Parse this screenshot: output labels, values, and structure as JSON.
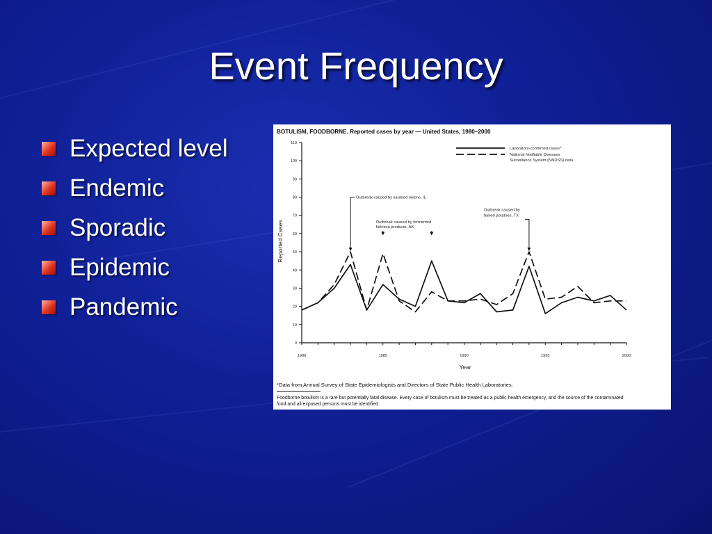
{
  "slide": {
    "title": "Event Frequency",
    "bullets": [
      "Expected level",
      "Endemic",
      "Sporadic",
      "Epidemic",
      "Pandemic"
    ],
    "colors": {
      "background": "#0f1f95",
      "bullet": "#e0341f",
      "text": "#ffffff"
    }
  },
  "chart_data": {
    "type": "line",
    "title": "BOTULISM, FOODBORNE. Reported cases by year — United States, 1980–2000",
    "xlabel": "Year",
    "ylabel": "Reported Cases",
    "xlim": [
      1980,
      2000
    ],
    "ylim": [
      0,
      110
    ],
    "x_ticks": [
      "1980",
      "1985",
      "1990",
      "1995",
      "2000"
    ],
    "y_ticks": [
      "0",
      "10",
      "20",
      "30",
      "40",
      "50",
      "60",
      "70",
      "80",
      "90",
      "100",
      "110"
    ],
    "grid": false,
    "legend_position": "top-right",
    "x": [
      1980,
      1981,
      1982,
      1983,
      1984,
      1985,
      1986,
      1987,
      1988,
      1989,
      1990,
      1991,
      1992,
      1993,
      1994,
      1995,
      1996,
      1997,
      1998,
      1999,
      2000
    ],
    "series": [
      {
        "name": "Laboratory-confirmed cases*",
        "style": "solid",
        "values": [
          18,
          22,
          30,
          43,
          18,
          32,
          24,
          20,
          45,
          23,
          22,
          27,
          17,
          18,
          42,
          16,
          22,
          25,
          23,
          26,
          18
        ]
      },
      {
        "name": "National Notifiable Diseases Surveillance System (NNDSS) data",
        "style": "dashed",
        "values": [
          18,
          22,
          32,
          50,
          18,
          49,
          23,
          17,
          28,
          23,
          23,
          24,
          21,
          27,
          50,
          24,
          25,
          31,
          22,
          23,
          23
        ]
      }
    ],
    "annotations": [
      {
        "text": [
          "Outbreak caused by sauteed onions, IL"
        ],
        "x": 1983,
        "y": 50,
        "label_y": 80,
        "style": "elbow"
      },
      {
        "text": [
          "Outbreak caused by fermented",
          "fish/sea products, AK"
        ],
        "x": 1985,
        "y": 59,
        "label_y": 63,
        "style": "short-both",
        "x2": 1988
      },
      {
        "text": [
          "Outbreak caused by",
          "baked potatoes, TX"
        ],
        "x": 1994,
        "y": 50,
        "label_y": 69,
        "style": "elbow-right"
      }
    ],
    "footnote": "*Data from Annual Survey of State Epidemiologists and Directors of State Public Health Laboratories.",
    "caption": "Foodborne botulism is a rare but potentially fatal disease. Every case of botulism must be treated as a public health emergency, and the source of the contaminated food and all exposed persons must be identified."
  }
}
